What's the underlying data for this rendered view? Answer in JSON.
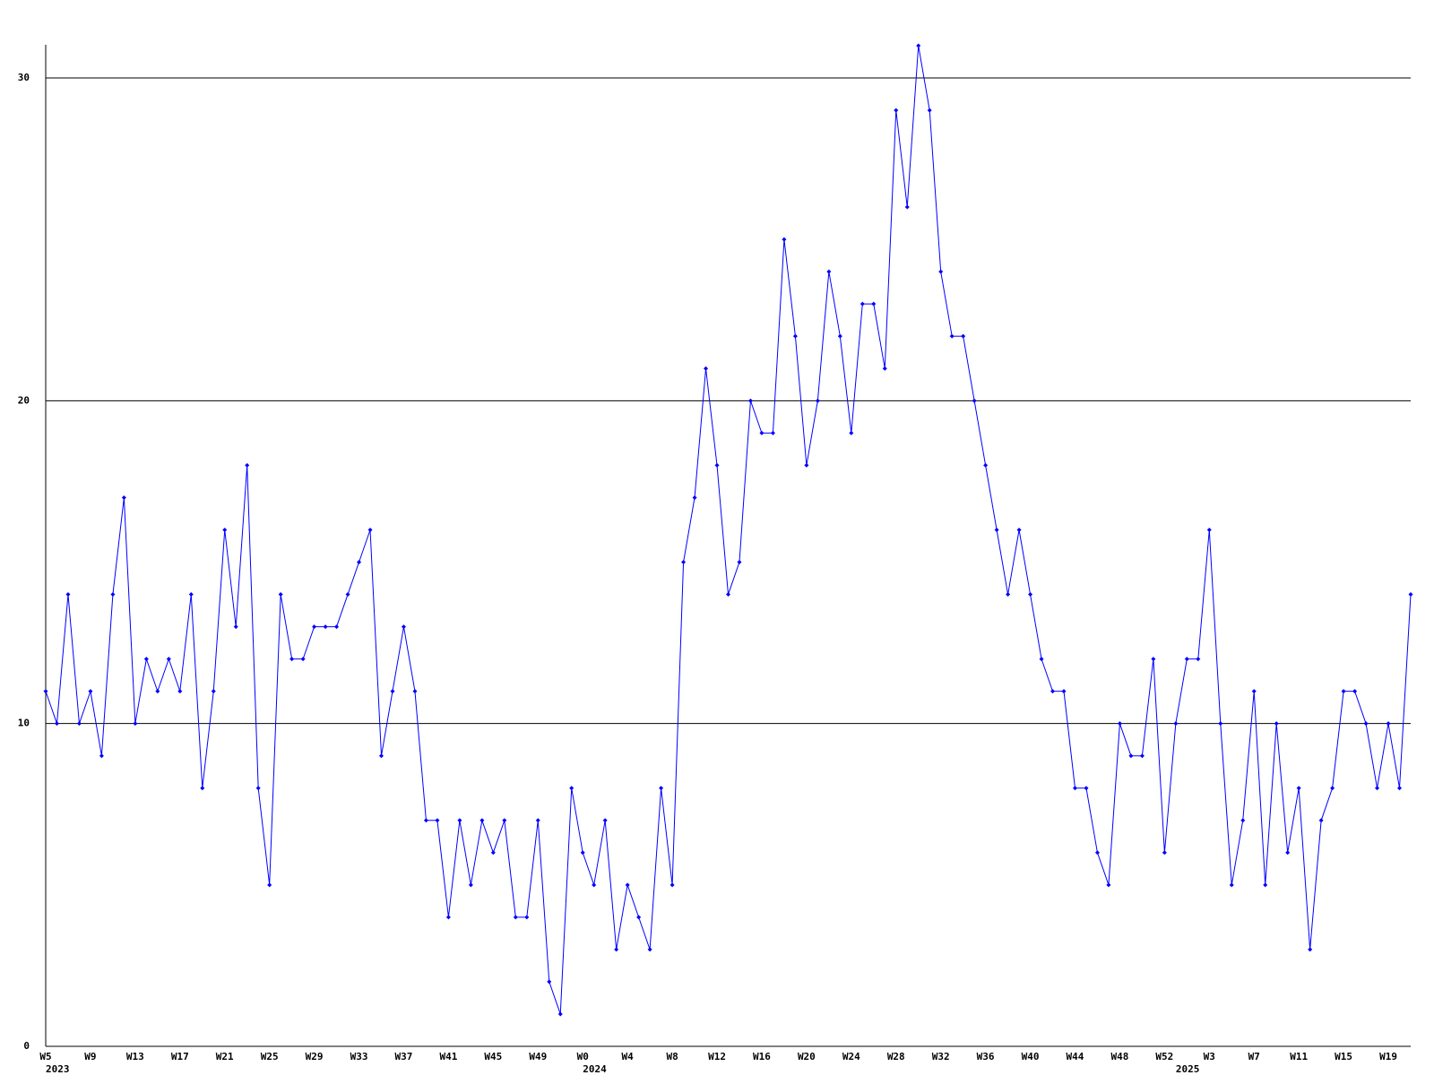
{
  "chart_data": {
    "type": "line",
    "categories": [
      "W5",
      null,
      null,
      null,
      "W9",
      null,
      null,
      null,
      "W13",
      null,
      null,
      null,
      "W17",
      null,
      null,
      null,
      "W21",
      null,
      null,
      null,
      "W25",
      null,
      null,
      null,
      "W29",
      null,
      null,
      null,
      "W33",
      null,
      null,
      null,
      "W37",
      null,
      null,
      null,
      "W41",
      null,
      null,
      null,
      "W45",
      null,
      null,
      null,
      "W49",
      null,
      null,
      null,
      "W0",
      null,
      null,
      null,
      "W4",
      null,
      null,
      null,
      "W8",
      null,
      null,
      null,
      "W12",
      null,
      null,
      null,
      "W16",
      null,
      null,
      null,
      "W20",
      null,
      null,
      null,
      "W24",
      null,
      null,
      null,
      "W28",
      null,
      null,
      null,
      "W32",
      null,
      null,
      null,
      "W36",
      null,
      null,
      null,
      "W40",
      null,
      null,
      null,
      "W44",
      null,
      null,
      null,
      "W48",
      null,
      null,
      null,
      "W52",
      null,
      null,
      null,
      "W3",
      null,
      null,
      null,
      "W7",
      null,
      null,
      null,
      "W11",
      null,
      null,
      null,
      "W15",
      null,
      null,
      null,
      "W19",
      null,
      null
    ],
    "category_years": [
      "2023",
      null,
      null,
      null,
      null,
      null,
      null,
      null,
      null,
      null,
      null,
      null,
      null,
      null,
      null,
      null,
      null,
      null,
      null,
      null,
      null,
      null,
      null,
      null,
      null,
      null,
      null,
      null,
      null,
      null,
      null,
      null,
      null,
      null,
      null,
      null,
      null,
      null,
      null,
      null,
      null,
      null,
      null,
      null,
      null,
      null,
      null,
      null,
      "2024",
      null,
      null,
      null,
      null,
      null,
      null,
      null,
      null,
      null,
      null,
      null,
      null,
      null,
      null,
      null,
      null,
      null,
      null,
      null,
      null,
      null,
      null,
      null,
      null,
      null,
      null,
      null,
      null,
      null,
      null,
      null,
      null,
      null,
      null,
      null,
      null,
      null,
      null,
      null,
      null,
      null,
      null,
      null,
      null,
      null,
      null,
      null,
      null,
      null,
      null,
      null,
      null,
      "2025",
      null,
      null,
      null,
      null,
      null,
      null,
      null,
      null,
      null,
      null,
      null,
      null,
      null,
      null,
      null,
      null,
      null,
      null,
      null,
      null,
      null
    ],
    "series": [
      {
        "color": "#0000ff",
        "values": [
          11,
          10,
          14,
          10,
          11,
          9,
          14,
          17,
          10,
          12,
          11,
          12,
          11,
          14,
          8,
          11,
          16,
          13,
          18,
          8,
          5,
          14,
          12,
          12,
          13,
          13,
          13,
          14,
          15,
          16,
          9,
          11,
          13,
          11,
          7,
          7,
          4,
          7,
          5,
          7,
          6,
          7,
          4,
          4,
          7,
          2,
          1,
          8,
          6,
          5,
          7,
          3,
          5,
          4,
          3,
          8,
          5,
          15,
          17,
          21,
          18,
          14,
          15,
          20,
          19,
          19,
          25,
          22,
          18,
          20,
          24,
          22,
          19,
          23,
          23,
          21,
          29,
          26,
          31,
          29,
          24,
          22,
          22,
          20,
          18,
          16,
          14,
          16,
          14,
          12,
          11,
          11,
          8,
          8,
          6,
          5,
          10,
          9,
          9,
          12,
          6,
          10,
          12,
          12,
          16,
          10,
          5,
          7,
          11,
          5,
          10,
          6,
          8,
          3,
          7,
          8,
          11,
          11,
          10,
          8,
          10,
          8,
          14
        ]
      }
    ],
    "ylim": [
      0,
      31
    ],
    "yticks": [
      0,
      10,
      20,
      30
    ],
    "grid": true
  }
}
